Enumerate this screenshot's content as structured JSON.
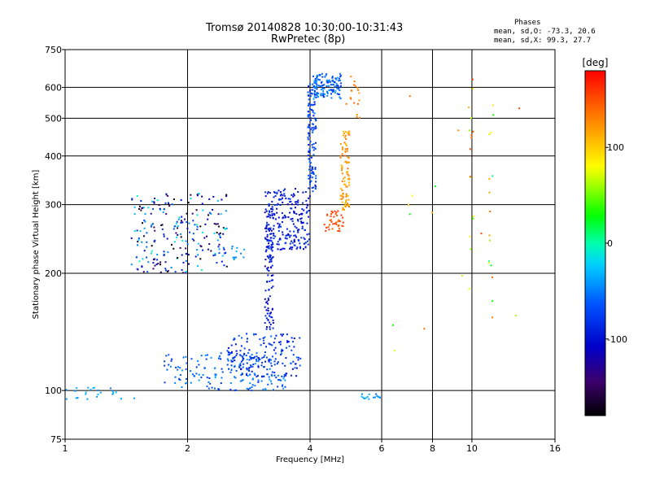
{
  "chart_data": {
    "type": "scatter",
    "title": "Tromsø 20140828 10:30:00-10:31:43",
    "subtitle": "RwPretec (8p)",
    "xlabel": "Frequency [MHz]",
    "ylabel": "Stationary phase Virtual Height [km]",
    "x_scale": "log",
    "y_scale": "log",
    "xlim": [
      1,
      16
    ],
    "ylim": [
      75,
      750
    ],
    "x_ticks": [
      "1",
      "2",
      "4",
      "6",
      "8",
      "10",
      "16"
    ],
    "x_tick_values": [
      1,
      2,
      4,
      6,
      8,
      10,
      16
    ],
    "y_ticks": [
      "75",
      "100",
      "200",
      "300",
      "400",
      "500",
      "600",
      "750"
    ],
    "y_tick_values": [
      75,
      100,
      200,
      300,
      400,
      500,
      600,
      750
    ],
    "grid": true,
    "phase_stats": {
      "heading": "Phases",
      "line_o": "mean, sd,O: -73.3, 20.6",
      "line_x": "mean, sd,X:  99.3, 27.7"
    },
    "colorbar": {
      "title": "[deg]",
      "range": [
        -180,
        180
      ],
      "tick_labels": [
        "100",
        "0",
        "-100"
      ],
      "tick_values": [
        100,
        0,
        -100
      ]
    },
    "clusters": [
      {
        "label": "ground_echo",
        "xr": [
          1.0,
          1.5
        ],
        "yr": [
          95,
          102
        ],
        "count": 24,
        "phase": -40,
        "spread": 15
      },
      {
        "label": "sporadic_low",
        "xr": [
          1.75,
          3.5
        ],
        "yr": [
          100,
          125
        ],
        "count": 180,
        "phase": -60,
        "spread": 25
      },
      {
        "label": "sporadic_upper",
        "xr": [
          2.5,
          3.8
        ],
        "yr": [
          108,
          140
        ],
        "count": 160,
        "phase": -80,
        "spread": 25
      },
      {
        "label": "f_low_patch",
        "xr": [
          1.45,
          2.5
        ],
        "yr": [
          200,
          320
        ],
        "count": 240,
        "phase": -90,
        "spread": 90
      },
      {
        "label": "f_side_patch",
        "xr": [
          2.55,
          2.85
        ],
        "yr": [
          215,
          235
        ],
        "count": 12,
        "phase": -40,
        "spread": 15
      },
      {
        "label": "o_trace_rise",
        "xr": [
          3.1,
          3.25
        ],
        "yr": [
          140,
          300
        ],
        "count": 110,
        "phase": -100,
        "spread": 20
      },
      {
        "label": "o_trace_spread",
        "xr": [
          3.1,
          4.0
        ],
        "yr": [
          230,
          330
        ],
        "count": 220,
        "phase": -95,
        "spread": 20
      },
      {
        "label": "o_trace_cusp",
        "xr": [
          3.95,
          4.15
        ],
        "yr": [
          320,
          620
        ],
        "count": 120,
        "phase": -75,
        "spread": 20
      },
      {
        "label": "o_trace_top",
        "xr": [
          4.05,
          4.8
        ],
        "yr": [
          560,
          650
        ],
        "count": 130,
        "phase": -60,
        "spread": 25
      },
      {
        "label": "x_trace_low",
        "xr": [
          4.3,
          4.85
        ],
        "yr": [
          255,
          290
        ],
        "count": 40,
        "phase": 150,
        "spread": 12
      },
      {
        "label": "x_trace_rise",
        "xr": [
          4.75,
          5.0
        ],
        "yr": [
          290,
          470
        ],
        "count": 90,
        "phase": 120,
        "spread": 20
      },
      {
        "label": "x_trace_top",
        "xr": [
          4.9,
          5.3
        ],
        "yr": [
          500,
          650
        ],
        "count": 18,
        "phase": 130,
        "spread": 15
      },
      {
        "label": "faint_e_high",
        "xr": [
          5.3,
          6.0
        ],
        "yr": [
          95,
          98
        ],
        "count": 16,
        "phase": -40,
        "spread": 20
      },
      {
        "label": "scatter_10mhz",
        "xr": [
          9.8,
          10.1
        ],
        "yr": [
          160,
          650
        ],
        "count": 16,
        "phase": 100,
        "spread": 60
      },
      {
        "label": "scatter_11mhz",
        "xr": [
          11.0,
          11.3
        ],
        "yr": [
          150,
          600
        ],
        "count": 16,
        "phase": 80,
        "spread": 80
      },
      {
        "label": "scatter_misc",
        "xr": [
          6.3,
          14.0
        ],
        "yr": [
          90,
          620
        ],
        "count": 14,
        "phase": 100,
        "spread": 80
      }
    ]
  }
}
